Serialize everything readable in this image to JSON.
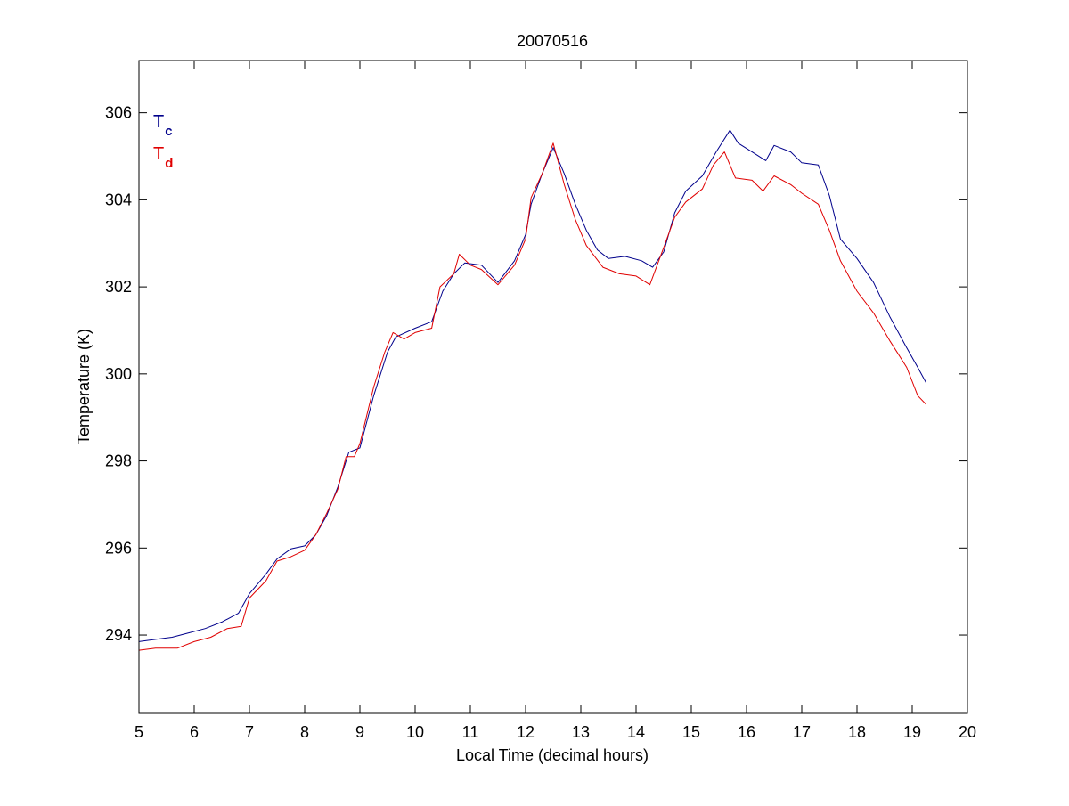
{
  "chart_data": {
    "type": "line",
    "title": "20070516",
    "xlabel": "Local Time (decimal hours)",
    "ylabel": "Temperature (K)",
    "xlim": [
      5,
      20
    ],
    "ylim": [
      292.2,
      307.2
    ],
    "xticks": [
      5,
      6,
      7,
      8,
      9,
      10,
      11,
      12,
      13,
      14,
      15,
      16,
      17,
      18,
      19,
      20
    ],
    "yticks": [
      294,
      296,
      298,
      300,
      302,
      304,
      306
    ],
    "grid": false,
    "legend_position": "top-left",
    "series": [
      {
        "name": "T",
        "subscript": "c",
        "color": "#00008b",
        "points": [
          [
            5.0,
            293.85
          ],
          [
            5.3,
            293.9
          ],
          [
            5.6,
            293.95
          ],
          [
            5.9,
            294.05
          ],
          [
            6.2,
            294.15
          ],
          [
            6.5,
            294.3
          ],
          [
            6.8,
            294.5
          ],
          [
            7.0,
            294.95
          ],
          [
            7.3,
            295.4
          ],
          [
            7.5,
            295.75
          ],
          [
            7.75,
            295.98
          ],
          [
            8.0,
            296.05
          ],
          [
            8.2,
            296.3
          ],
          [
            8.4,
            296.75
          ],
          [
            8.6,
            297.4
          ],
          [
            8.8,
            298.2
          ],
          [
            9.0,
            298.3
          ],
          [
            9.25,
            299.5
          ],
          [
            9.5,
            300.5
          ],
          [
            9.65,
            300.85
          ],
          [
            10.0,
            301.05
          ],
          [
            10.3,
            301.2
          ],
          [
            10.5,
            301.9
          ],
          [
            10.7,
            302.3
          ],
          [
            10.9,
            302.55
          ],
          [
            11.2,
            302.5
          ],
          [
            11.5,
            302.1
          ],
          [
            11.8,
            302.6
          ],
          [
            12.0,
            303.2
          ],
          [
            12.1,
            303.9
          ],
          [
            12.3,
            304.6
          ],
          [
            12.5,
            305.2
          ],
          [
            12.7,
            304.6
          ],
          [
            12.9,
            303.9
          ],
          [
            13.1,
            303.3
          ],
          [
            13.3,
            302.85
          ],
          [
            13.5,
            302.65
          ],
          [
            13.8,
            302.7
          ],
          [
            14.1,
            302.6
          ],
          [
            14.3,
            302.45
          ],
          [
            14.5,
            302.8
          ],
          [
            14.7,
            303.7
          ],
          [
            14.9,
            304.2
          ],
          [
            15.2,
            304.55
          ],
          [
            15.45,
            305.1
          ],
          [
            15.7,
            305.6
          ],
          [
            15.85,
            305.3
          ],
          [
            16.1,
            305.1
          ],
          [
            16.35,
            304.9
          ],
          [
            16.5,
            305.25
          ],
          [
            16.8,
            305.1
          ],
          [
            17.0,
            304.85
          ],
          [
            17.3,
            304.8
          ],
          [
            17.5,
            304.1
          ],
          [
            17.7,
            303.1
          ],
          [
            18.0,
            302.65
          ],
          [
            18.3,
            302.1
          ],
          [
            18.6,
            301.3
          ],
          [
            18.9,
            300.6
          ],
          [
            19.1,
            300.15
          ],
          [
            19.25,
            299.8
          ]
        ]
      },
      {
        "name": "T",
        "subscript": "d",
        "color": "#e00000",
        "points": [
          [
            5.0,
            293.65
          ],
          [
            5.3,
            293.7
          ],
          [
            5.7,
            293.7
          ],
          [
            6.0,
            293.85
          ],
          [
            6.3,
            293.95
          ],
          [
            6.6,
            294.15
          ],
          [
            6.85,
            294.2
          ],
          [
            7.0,
            294.85
          ],
          [
            7.3,
            295.25
          ],
          [
            7.5,
            295.7
          ],
          [
            7.75,
            295.8
          ],
          [
            8.0,
            295.95
          ],
          [
            8.2,
            296.3
          ],
          [
            8.4,
            296.8
          ],
          [
            8.6,
            297.35
          ],
          [
            8.75,
            298.1
          ],
          [
            8.9,
            298.1
          ],
          [
            9.0,
            298.4
          ],
          [
            9.25,
            299.7
          ],
          [
            9.45,
            300.5
          ],
          [
            9.6,
            300.95
          ],
          [
            9.8,
            300.8
          ],
          [
            10.0,
            300.95
          ],
          [
            10.3,
            301.05
          ],
          [
            10.45,
            302.0
          ],
          [
            10.7,
            302.3
          ],
          [
            10.8,
            302.75
          ],
          [
            11.0,
            302.5
          ],
          [
            11.2,
            302.4
          ],
          [
            11.5,
            302.05
          ],
          [
            11.8,
            302.5
          ],
          [
            12.0,
            303.1
          ],
          [
            12.1,
            304.05
          ],
          [
            12.3,
            304.6
          ],
          [
            12.5,
            305.3
          ],
          [
            12.7,
            304.35
          ],
          [
            12.9,
            303.55
          ],
          [
            13.1,
            302.95
          ],
          [
            13.4,
            302.45
          ],
          [
            13.7,
            302.3
          ],
          [
            14.0,
            302.25
          ],
          [
            14.25,
            302.05
          ],
          [
            14.5,
            302.9
          ],
          [
            14.7,
            303.6
          ],
          [
            14.9,
            303.95
          ],
          [
            15.2,
            304.25
          ],
          [
            15.4,
            304.8
          ],
          [
            15.6,
            305.1
          ],
          [
            15.8,
            304.5
          ],
          [
            16.1,
            304.45
          ],
          [
            16.3,
            304.2
          ],
          [
            16.5,
            304.55
          ],
          [
            16.8,
            304.35
          ],
          [
            17.0,
            304.15
          ],
          [
            17.3,
            303.9
          ],
          [
            17.5,
            303.3
          ],
          [
            17.7,
            302.6
          ],
          [
            18.0,
            301.9
          ],
          [
            18.3,
            301.4
          ],
          [
            18.6,
            300.75
          ],
          [
            18.9,
            300.15
          ],
          [
            19.1,
            299.5
          ],
          [
            19.25,
            299.3
          ]
        ]
      }
    ]
  }
}
